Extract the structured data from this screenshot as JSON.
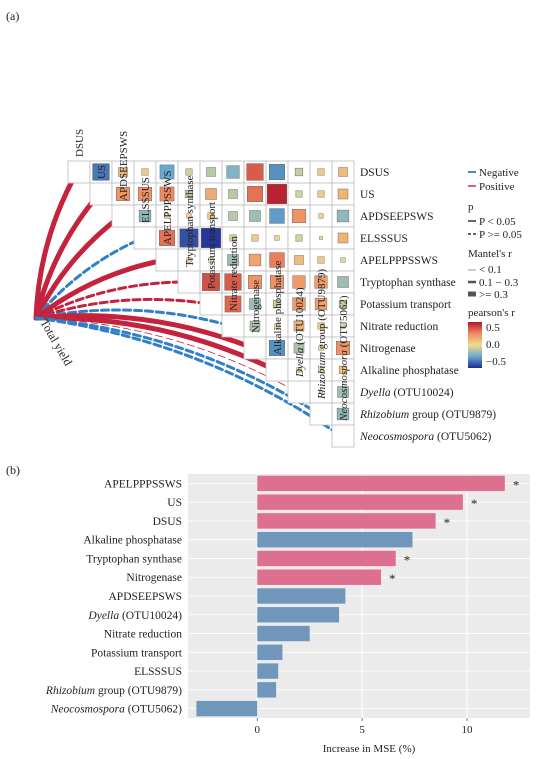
{
  "panel_a": {
    "label": "(a)",
    "env_label": "Total yield",
    "variables": [
      {
        "pre": "DSUS",
        "it": "",
        "post": ""
      },
      {
        "pre": "US",
        "it": "",
        "post": ""
      },
      {
        "pre": "APDSEEPSWS",
        "it": "",
        "post": ""
      },
      {
        "pre": "ELSSSUS",
        "it": "",
        "post": ""
      },
      {
        "pre": "APELPPPSSWS",
        "it": "",
        "post": ""
      },
      {
        "pre": "Tryptophan synthase",
        "it": "",
        "post": ""
      },
      {
        "pre": "Potassium transport",
        "it": "",
        "post": ""
      },
      {
        "pre": "Nitrate reduction",
        "it": "",
        "post": ""
      },
      {
        "pre": "Nitrogenase",
        "it": "",
        "post": ""
      },
      {
        "pre": "Alkaline phosphatase",
        "it": "",
        "post": ""
      },
      {
        "pre": "",
        "it": "Dyella",
        "post": " (OTU10024)"
      },
      {
        "pre": "",
        "it": "Rhizobium",
        "post": " group (OTU9879)"
      },
      {
        "pre": "",
        "it": "Neocosmospora",
        "post": " (OTU5062)"
      }
    ],
    "legend": {
      "sign_entries": [
        {
          "label": "Negative",
          "color": "#4a8ac9"
        },
        {
          "label": "Positive",
          "color": "#e85c79"
        }
      ],
      "p_title": "p",
      "p_entries": [
        "P < 0.05",
        "P >= 0.05"
      ],
      "mantel_title": "Mantel's r",
      "mantel_entries": [
        "< 0.1",
        "0.1 − 0.3",
        ">= 0.3"
      ],
      "pearson_title": "pearson's r",
      "pearson_ticks": [
        "0.5",
        "0.0",
        "−0.5"
      ]
    },
    "chart_data": {
      "type": "heatmap",
      "description_method": "upper-triangle Pearson correlation matrix with Mantel links to Total yield",
      "pearson_r": [
        [
          null,
          -0.7,
          0.2,
          0.1,
          -0.5,
          -0.1,
          -0.2,
          -0.4,
          0.7,
          -0.6,
          -0.15,
          0.1,
          0.2
        ],
        [
          null,
          null,
          0.45,
          0.45,
          0.5,
          -0.15,
          0.3,
          -0.2,
          0.6,
          0.95,
          -0.1,
          0.1,
          0.25
        ],
        [
          null,
          null,
          null,
          -0.35,
          0.05,
          0.05,
          0.1,
          -0.2,
          -0.3,
          -0.55,
          0.45,
          0.05,
          -0.35
        ],
        [
          null,
          null,
          null,
          null,
          0.6,
          -0.85,
          -0.95,
          -0.1,
          0.1,
          0.05,
          -0.1,
          0.0,
          0.25
        ],
        [
          null,
          null,
          null,
          null,
          null,
          0.05,
          -0.05,
          -0.3,
          0.35,
          0.55,
          0.2,
          0.1,
          -0.05
        ],
        [
          null,
          null,
          null,
          null,
          null,
          null,
          0.75,
          0.7,
          0.45,
          0.45,
          0.4,
          0.4,
          -0.3
        ],
        [
          null,
          null,
          null,
          null,
          null,
          null,
          null,
          0.65,
          -0.3,
          -0.15,
          0.4,
          0.35,
          -0.15
        ],
        [
          null,
          null,
          null,
          null,
          null,
          null,
          null,
          null,
          -0.25,
          0.05,
          0.25,
          0.1,
          -0.05
        ],
        [
          null,
          null,
          null,
          null,
          null,
          null,
          null,
          null,
          null,
          -0.6,
          -0.25,
          0.05,
          0.45
        ],
        [
          null,
          null,
          null,
          null,
          null,
          null,
          null,
          null,
          null,
          null,
          0.05,
          -0.05,
          0.15
        ],
        [
          null,
          null,
          null,
          null,
          null,
          null,
          null,
          null,
          null,
          null,
          null,
          0.0,
          -0.3
        ],
        [
          null,
          null,
          null,
          null,
          null,
          null,
          null,
          null,
          null,
          null,
          null,
          null,
          -0.35
        ],
        [
          null,
          null,
          null,
          null,
          null,
          null,
          null,
          null,
          null,
          null,
          null,
          null,
          null
        ]
      ],
      "mantel_links": [
        {
          "to": "DSUS",
          "sign": "Positive",
          "r_class": ">= 0.3",
          "p_class": "P < 0.05"
        },
        {
          "to": "US",
          "sign": "Positive",
          "r_class": ">= 0.3",
          "p_class": "P < 0.05"
        },
        {
          "to": "APDSEEPSWS",
          "sign": "Positive",
          "r_class": ">= 0.3",
          "p_class": "P < 0.05"
        },
        {
          "to": "ELSSSUS",
          "sign": "Negative",
          "r_class": "0.1 − 0.3",
          "p_class": "P >= 0.05"
        },
        {
          "to": "APELPPPSSWS",
          "sign": "Positive",
          "r_class": ">= 0.3",
          "p_class": "P < 0.05"
        },
        {
          "to": "Tryptophan synthase",
          "sign": "Positive",
          "r_class": "0.1 − 0.3",
          "p_class": "P >= 0.05"
        },
        {
          "to": "Potassium transport",
          "sign": "Positive",
          "r_class": "0.1 − 0.3",
          "p_class": "P >= 0.05"
        },
        {
          "to": "Nitrate reduction",
          "sign": "Negative",
          "r_class": "0.1 − 0.3",
          "p_class": "P >= 0.05"
        },
        {
          "to": "Nitrogenase",
          "sign": "Positive",
          "r_class": ">= 0.3",
          "p_class": "P < 0.05"
        },
        {
          "to": "Alkaline phosphatase",
          "sign": "Positive",
          "r_class": ">= 0.3",
          "p_class": "P < 0.05"
        },
        {
          "to": "Dyella (OTU10024)",
          "sign": "Positive",
          "r_class": "< 0.1",
          "p_class": "P >= 0.05"
        },
        {
          "to": "Rhizobium group (OTU9879)",
          "sign": "Negative",
          "r_class": "0.1 − 0.3",
          "p_class": "P >= 0.05"
        },
        {
          "to": "Neocosmospora (OTU5062)",
          "sign": "Negative",
          "r_class": "0.1 − 0.3",
          "p_class": "P >= 0.05"
        }
      ]
    }
  },
  "panel_b": {
    "label": "(b)",
    "chart_data": {
      "type": "bar",
      "orientation": "horizontal",
      "xlabel": "Increase in MSE (%)",
      "xlim": [
        -3.3,
        13.0
      ],
      "xticks": [
        0,
        5,
        10
      ],
      "significance_marker": "*",
      "colors": {
        "significant": "#dd6f8f",
        "non_significant": "#7096bc"
      },
      "bars": [
        {
          "pre": "APELPPPSSWS",
          "it": "",
          "post": "",
          "value": 11.8,
          "significant": true
        },
        {
          "pre": "US",
          "it": "",
          "post": "",
          "value": 9.8,
          "significant": true
        },
        {
          "pre": "DSUS",
          "it": "",
          "post": "",
          "value": 8.5,
          "significant": true
        },
        {
          "pre": "Alkaline phosphatase",
          "it": "",
          "post": "",
          "value": 7.4,
          "significant": false
        },
        {
          "pre": "Tryptophan synthase",
          "it": "",
          "post": "",
          "value": 6.6,
          "significant": true
        },
        {
          "pre": "Nitrogenase",
          "it": "",
          "post": "",
          "value": 5.9,
          "significant": true
        },
        {
          "pre": "APDSEEPSWS",
          "it": "",
          "post": "",
          "value": 4.2,
          "significant": false
        },
        {
          "pre": "",
          "it": "Dyella",
          "post": " (OTU10024)",
          "value": 3.9,
          "significant": false
        },
        {
          "pre": "Nitrate reduction",
          "it": "",
          "post": "",
          "value": 2.5,
          "significant": false
        },
        {
          "pre": "Potassium transport",
          "it": "",
          "post": "",
          "value": 1.2,
          "significant": false
        },
        {
          "pre": "ELSSSUS",
          "it": "",
          "post": "",
          "value": 1.0,
          "significant": false
        },
        {
          "pre": "",
          "it": "Rhizobium",
          "post": " group (OTU9879)",
          "value": 0.9,
          "significant": false
        },
        {
          "pre": "",
          "it": "Neocosmospora",
          "post": " (OTU5062)",
          "value": -2.9,
          "significant": false
        }
      ]
    }
  }
}
